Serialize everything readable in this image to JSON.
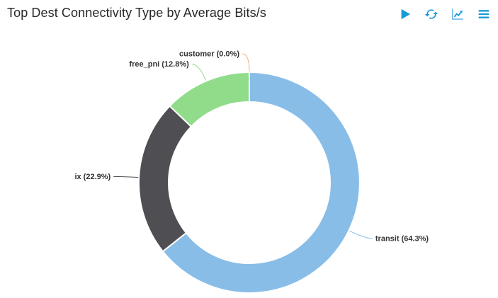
{
  "header": {
    "title": "Top Dest Connectivity Type by Average Bits/s",
    "accent_color": "#1899D6",
    "icons": [
      {
        "name": "play-icon",
        "meaning": "run query",
        "glyph": "solid right-pointing triangle"
      },
      {
        "name": "refresh-icon",
        "meaning": "refresh data",
        "glyph": "two circular sync arrows"
      },
      {
        "name": "chart-icon",
        "meaning": "view as chart",
        "glyph": "line chart with rising arrow"
      },
      {
        "name": "menu-icon",
        "meaning": "panel options",
        "glyph": "three horizontal bars"
      }
    ]
  },
  "chart_data": {
    "type": "pie",
    "subtype": "donut",
    "title": "Top Dest Connectivity Type by Average Bits/s",
    "legend_position": "none",
    "start_angle_deg": 0,
    "direction": "clockwise",
    "label_color": "#333333",
    "background": "#ffffff",
    "slices": [
      {
        "name": "transit",
        "percent": 64.3,
        "label": "transit (64.3%)",
        "color": "#88BDE8"
      },
      {
        "name": "ix",
        "percent": 22.9,
        "label": "ix (22.9%)",
        "color": "#4E4E53"
      },
      {
        "name": "free_pni",
        "percent": 12.8,
        "label": "free_pni (12.8%)",
        "color": "#90DC8B"
      },
      {
        "name": "customer",
        "percent": 0.0,
        "label": "customer (0.0%)",
        "color": "#EBB276"
      }
    ]
  }
}
